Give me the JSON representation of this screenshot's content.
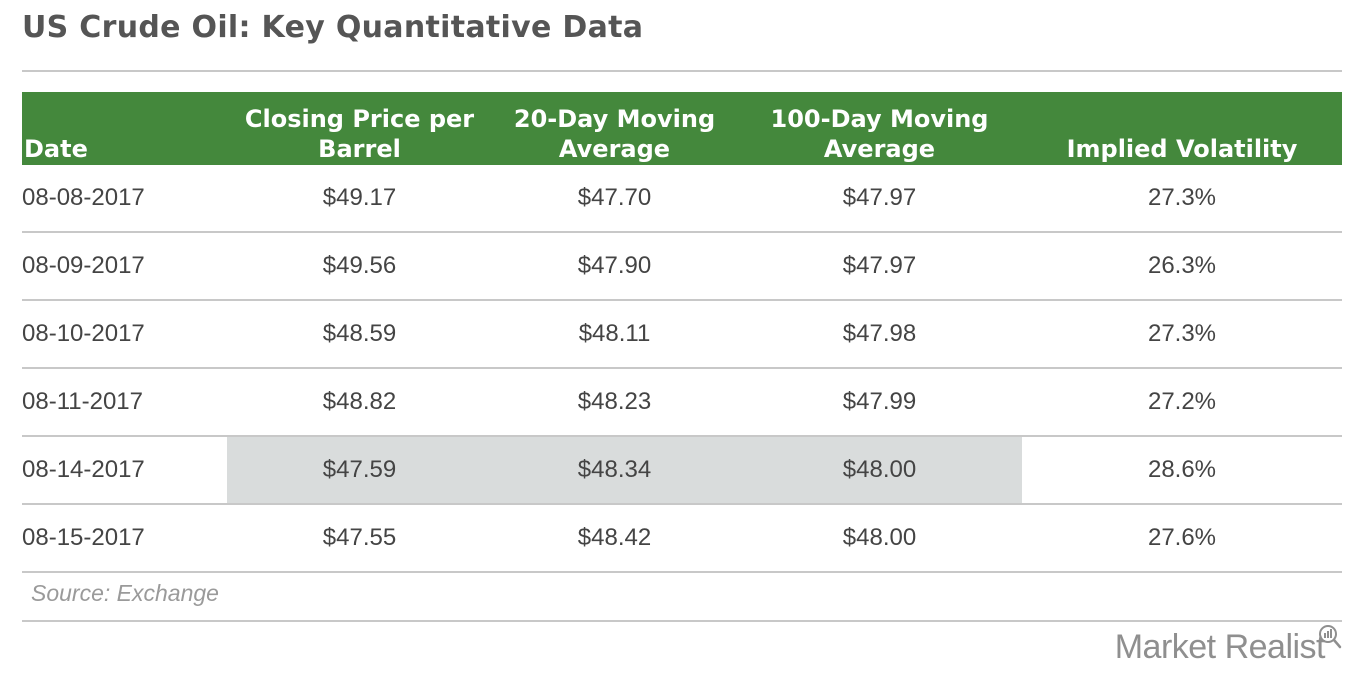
{
  "title": "US Crude Oil: Key Quantitative Data",
  "table": {
    "headers": [
      "Date",
      "Closing Price per Barrel",
      "20-Day Moving Average",
      "100-Day Moving Average",
      "Implied Volatility"
    ],
    "rows": [
      [
        "08-08-2017",
        "$49.17",
        "$47.70",
        "$47.97",
        "27.3%"
      ],
      [
        "08-09-2017",
        "$49.56",
        "$47.90",
        "$47.97",
        "26.3%"
      ],
      [
        "08-10-2017",
        "$48.59",
        "$48.11",
        "$47.98",
        "27.3%"
      ],
      [
        "08-11-2017",
        "$48.82",
        "$48.23",
        "$47.99",
        "27.2%"
      ],
      [
        "08-14-2017",
        "$47.59",
        "$48.34",
        "$48.00",
        "28.6%"
      ],
      [
        "08-15-2017",
        "$47.55",
        "$48.42",
        "$48.00",
        "27.6%"
      ]
    ],
    "highlighted_row": 4,
    "highlighted_columns": [
      1,
      2,
      3
    ]
  },
  "source_note": "Source: Exchange",
  "brand": "Market Realist",
  "colors": {
    "header_bg": "#44883c",
    "header_text": "#ffffff",
    "highlight_bg": "#d9dcdc",
    "rule": "#c8c8c8"
  },
  "chart_data": {
    "type": "table",
    "title": "US Crude Oil: Key Quantitative Data",
    "columns": [
      "Date",
      "Closing Price per Barrel",
      "20-Day Moving Average",
      "100-Day Moving Average",
      "Implied Volatility"
    ],
    "rows": [
      [
        "08-08-2017",
        49.17,
        47.7,
        47.97,
        27.3
      ],
      [
        "08-09-2017",
        49.56,
        47.9,
        47.97,
        26.3
      ],
      [
        "08-10-2017",
        48.59,
        48.11,
        47.98,
        27.3
      ],
      [
        "08-11-2017",
        48.82,
        48.23,
        47.99,
        27.2
      ],
      [
        "08-14-2017",
        47.59,
        48.34,
        48.0,
        28.6
      ],
      [
        "08-15-2017",
        47.55,
        48.42,
        48.0,
        27.6
      ]
    ],
    "units": [
      "",
      "$",
      "$",
      "$",
      "%"
    ],
    "source": "Source: Exchange"
  }
}
